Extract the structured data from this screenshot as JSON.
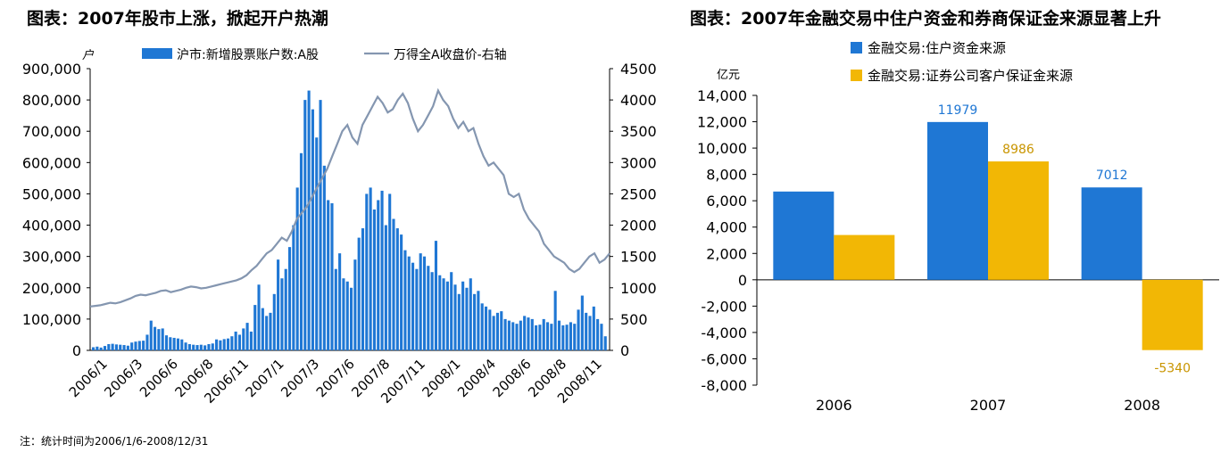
{
  "left_chart": {
    "title": "图表：2007年股市上涨，掀起开户热潮",
    "footnote": "注：统计时间为2006/1/6-2008/12/31"
  },
  "right_chart": {
    "title": "图表：2007年金融交易中住户资金和券商保证金来源显著上升"
  },
  "chart_data": [
    {
      "type": "bar",
      "title": "图表：2007年股市上涨，掀起开户热潮",
      "left_axis_unit": "户",
      "ylim_left": [
        0,
        900000
      ],
      "ylim_right": [
        0,
        4500
      ],
      "y_ticks_left": [
        "0",
        "100,000",
        "200,000",
        "300,000",
        "400,000",
        "500,000",
        "600,000",
        "700,000",
        "800,000",
        "900,000"
      ],
      "y_ticks_right": [
        "0",
        "500",
        "1000",
        "1500",
        "2000",
        "2500",
        "3000",
        "3500",
        "4000",
        "4500"
      ],
      "x_tick_labels": [
        "2006/1",
        "2006/3",
        "2006/6",
        "2006/8",
        "2006/11",
        "2007/1",
        "2007/3",
        "2007/6",
        "2007/8",
        "2007/11",
        "2008/1",
        "2008/4",
        "2008/6",
        "2008/8",
        "2008/11"
      ],
      "legend": [
        "沪市:新增股票账户数:A股",
        "万得全A收盘价-右轴"
      ],
      "colors": {
        "bar": "#1f77d4",
        "line": "#8496b0"
      },
      "series": [
        {
          "name": "沪市:新增股票账户数:A股",
          "type": "bar",
          "axis": "left",
          "values": [
            10000,
            12000,
            9000,
            14000,
            20000,
            21000,
            19000,
            18000,
            17000,
            15000,
            25000,
            28000,
            30000,
            31000,
            50000,
            95000,
            75000,
            68000,
            70000,
            48000,
            42000,
            40000,
            38000,
            35000,
            25000,
            20000,
            18000,
            17000,
            18000,
            16000,
            20000,
            22000,
            35000,
            32000,
            36000,
            38000,
            45000,
            60000,
            50000,
            70000,
            88000,
            60000,
            145000,
            210000,
            135000,
            110000,
            120000,
            180000,
            290000,
            230000,
            260000,
            330000,
            400000,
            520000,
            630000,
            800000,
            830000,
            770000,
            680000,
            800000,
            590000,
            480000,
            470000,
            260000,
            310000,
            230000,
            220000,
            200000,
            290000,
            360000,
            390000,
            500000,
            520000,
            450000,
            480000,
            510000,
            400000,
            500000,
            420000,
            390000,
            370000,
            320000,
            300000,
            280000,
            260000,
            310000,
            300000,
            270000,
            250000,
            350000,
            240000,
            230000,
            220000,
            250000,
            210000,
            180000,
            220000,
            200000,
            230000,
            180000,
            190000,
            150000,
            140000,
            130000,
            110000,
            120000,
            125000,
            100000,
            95000,
            90000,
            85000,
            95000,
            110000,
            105000,
            100000,
            80000,
            82000,
            100000,
            90000,
            85000,
            190000,
            95000,
            80000,
            82000,
            90000,
            85000,
            130000,
            175000,
            120000,
            110000,
            140000,
            100000,
            85000,
            45000
          ],
          "note": "weekly, approximate"
        },
        {
          "name": "万得全A收盘价-右轴",
          "type": "line",
          "axis": "right",
          "values": [
            700,
            710,
            720,
            740,
            760,
            750,
            770,
            800,
            830,
            870,
            890,
            880,
            900,
            920,
            950,
            960,
            930,
            950,
            970,
            1000,
            1020,
            1010,
            990,
            1000,
            1020,
            1040,
            1060,
            1080,
            1100,
            1120,
            1150,
            1200,
            1280,
            1350,
            1450,
            1550,
            1600,
            1700,
            1800,
            1750,
            1900,
            2100,
            2200,
            2300,
            2450,
            2600,
            2750,
            2900,
            3100,
            3300,
            3500,
            3600,
            3400,
            3300,
            3600,
            3750,
            3900,
            4050,
            3950,
            3800,
            3850,
            4000,
            4100,
            3950,
            3700,
            3500,
            3600,
            3750,
            3900,
            4150,
            4000,
            3900,
            3700,
            3550,
            3650,
            3500,
            3550,
            3300,
            3100,
            2950,
            3000,
            2900,
            2800,
            2500,
            2450,
            2500,
            2250,
            2100,
            2000,
            1900,
            1700,
            1600,
            1500,
            1450,
            1400,
            1300,
            1250,
            1300,
            1400,
            1500,
            1550,
            1400,
            1450,
            1550
          ],
          "note": "approximate"
        }
      ]
    },
    {
      "type": "bar",
      "title": "图表：2007年金融交易中住户资金和券商保证金来源显著上升",
      "y_unit": "亿元",
      "ylim": [
        -8000,
        14000
      ],
      "y_ticks": [
        "-8,000",
        "-6,000",
        "-4,000",
        "-2,000",
        "0",
        "2,000",
        "4,000",
        "6,000",
        "8,000",
        "10,000",
        "12,000",
        "14,000"
      ],
      "categories": [
        "2006",
        "2007",
        "2008"
      ],
      "colors": {
        "series1": "#1f77d4",
        "series2": "#f2b705",
        "label1": "#1f77d4",
        "label2": "#c99500"
      },
      "series": [
        {
          "name": "金融交易:住户资金来源",
          "values": [
            6700,
            11979,
            7012
          ],
          "labels": [
            "",
            "11979",
            "7012"
          ]
        },
        {
          "name": "金融交易:证券公司客户保证金来源",
          "values": [
            3400,
            8986,
            -5340
          ],
          "labels": [
            "",
            "8986",
            "-5340"
          ]
        }
      ]
    }
  ]
}
